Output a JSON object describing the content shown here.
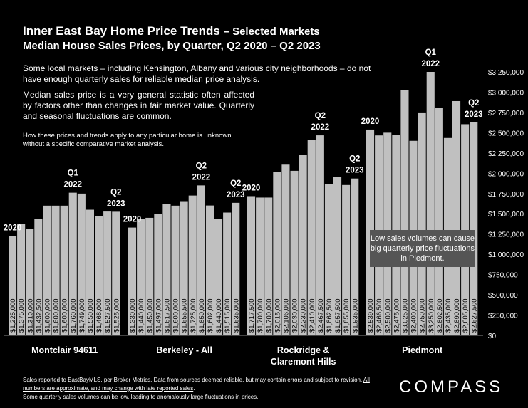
{
  "chart_data": {
    "type": "bar",
    "title": "Inner East Bay Home Price Trends",
    "title_suffix": "– Selected Markets",
    "subtitle": "Median House Sales Prices, by Quarter, Q2 2020 – Q2 2023",
    "ylim": [
      0,
      3250000
    ],
    "yticks": [
      "$0",
      "$250,000",
      "$500,000",
      "$750,000",
      "$1,000,000",
      "$1,250,000",
      "$1,500,000",
      "$1,750,000",
      "$2,000,000",
      "$2,250,000",
      "$2,500,000",
      "$2,750,000",
      "$3,000,000",
      "$3,250,000"
    ],
    "bar_color": "#c0c0c0",
    "groups": [
      {
        "name": "Montclair  94611",
        "values": [
          1225000,
          1375000,
          1310000,
          1432500,
          1600000,
          1600000,
          1600000,
          1760000,
          1749000,
          1550000,
          1468000,
          1527500,
          1525000
        ],
        "labels": [
          "$1,225,000",
          "$1,375,000",
          "$1,310,000",
          "$1,432,500",
          "$1,600,000",
          "$1,600,000",
          "$1,600,000",
          "$1,760,000",
          "$1,749,000",
          "$1,550,000",
          "$1,468,000",
          "$1,527,500",
          "$1,525,000"
        ],
        "annotations": [
          {
            "index": 0,
            "lines": [
              "2020"
            ]
          },
          {
            "index": 7,
            "lines": [
              "Q1",
              "2022"
            ]
          },
          {
            "index": 12,
            "lines": [
              "Q2",
              "2023"
            ]
          }
        ]
      },
      {
        "name": "Berkeley - All",
        "values": [
          1330000,
          1440000,
          1450000,
          1497000,
          1617500,
          1600000,
          1655500,
          1725000,
          1850000,
          1602000,
          1440000,
          1515000,
          1635000
        ],
        "labels": [
          "$1,330,000",
          "$1,440,000",
          "$1,450,000",
          "$1,497,000",
          "$1,617,500",
          "$1,600,000",
          "$1,655,500",
          "$1,725,000",
          "$1,850,000",
          "$1,602,000",
          "$1,440,000",
          "$1,515,000",
          "$1,635,000"
        ],
        "annotations": [
          {
            "index": 0,
            "lines": [
              "2020"
            ]
          },
          {
            "index": 8,
            "lines": [
              "Q2",
              "2022"
            ]
          },
          {
            "index": 12,
            "lines": [
              "Q2",
              "2023"
            ]
          }
        ]
      },
      {
        "name": "Rockridge &",
        "name2": "Claremont Hills",
        "values": [
          1717500,
          1700000,
          1700000,
          2015000,
          2106000,
          2030000,
          2230000,
          2410000,
          2467500,
          1862500,
          1957500,
          1855000,
          1935000
        ],
        "labels": [
          "$1,717,500",
          "$1,700,000",
          "$1,700,000",
          "$2,015,000",
          "$2,106,000",
          "$2,030,000",
          "$2,230,000",
          "$2,410,000",
          "$2,467,500",
          "$1,862,500",
          "$1,957,500",
          "$1,855,000",
          "$1,935,000"
        ],
        "annotations": [
          {
            "index": 0,
            "lines": [
              "2020"
            ]
          },
          {
            "index": 8,
            "lines": [
              "Q2",
              "2022"
            ]
          },
          {
            "index": 12,
            "lines": [
              "Q2",
              "2023"
            ]
          }
        ]
      },
      {
        "name": "Piedmont",
        "values": [
          2539000,
          2466500,
          2500000,
          2475000,
          3025000,
          2400000,
          2750000,
          3250000,
          2802500,
          2435000,
          2890000,
          2605000,
          2627500
        ],
        "labels": [
          "$2,539,000",
          "$2,466,500",
          "$2,500,000",
          "$2,475,000",
          "$3,025,000",
          "$2,400,000",
          "$2,750,000",
          "$3,250,000",
          "$2,802,500",
          "$2,435,000",
          "$2,890,000",
          "$2,605,000",
          "$2,627,500"
        ],
        "annotations": [
          {
            "index": 0,
            "lines": [
              "2020"
            ]
          },
          {
            "index": 7,
            "lines": [
              "Q1",
              "2022"
            ]
          },
          {
            "index": 12,
            "lines": [
              "Q2",
              "2023"
            ]
          }
        ]
      }
    ]
  },
  "notes": {
    "note1": "Some local markets – including Kensington, Albany and various city neighborhoods – do not have enough quarterly sales for reliable median price analysis.",
    "note2": "Median sales price is a very general statistic often affected by factors other than changes in fair market value. Quarterly and seasonal fluctuations are common.",
    "note3": "How these prices and trends apply to any particular home is unknown without a specific comparative market analysis.",
    "callout": "Low sales volumes can cause big quarterly price fluctuations in Piedmont."
  },
  "footer": {
    "line1": "Sales reported to EastBayMLS, per Broker Metrics. Data from sources deemed reliable, but may contain errors and subject to revision. ",
    "line1_underlined": "All numbers are approximate, and may change with late reported sales",
    "line1_end": ".",
    "line2": "Some quarterly sales volumes can be low, leading to anomalously large fluctuations in prices."
  },
  "brand": {
    "logo": "COMPASS"
  }
}
